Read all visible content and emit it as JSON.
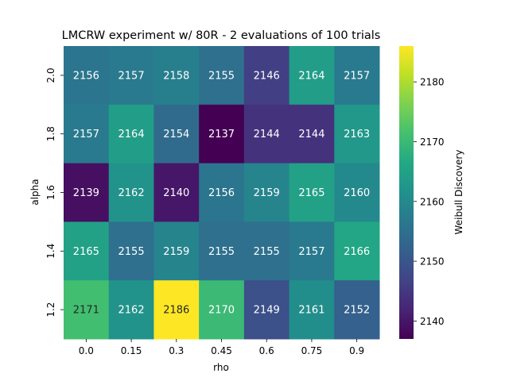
{
  "chart_data": {
    "type": "heatmap",
    "title": "LMCRW experiment w/ 80R - 2 evaluations of 100 trials",
    "xlabel": "rho",
    "ylabel": "alpha",
    "x_categories": [
      "0.0",
      "0.15",
      "0.3",
      "0.45",
      "0.6",
      "0.75",
      "0.9"
    ],
    "y_categories": [
      "2.0",
      "1.8",
      "1.6",
      "1.4",
      "1.2"
    ],
    "values": [
      [
        2156,
        2157,
        2158,
        2155,
        2146,
        2164,
        2157
      ],
      [
        2157,
        2164,
        2154,
        2137,
        2144,
        2144,
        2163
      ],
      [
        2139,
        2162,
        2140,
        2156,
        2159,
        2165,
        2160
      ],
      [
        2165,
        2155,
        2159,
        2155,
        2155,
        2157,
        2166
      ],
      [
        2171,
        2162,
        2186,
        2170,
        2149,
        2161,
        2152
      ]
    ],
    "colorbar": {
      "label": "Weibull Discovery",
      "range": [
        2137,
        2186
      ],
      "ticks": [
        2140,
        2150,
        2160,
        2170,
        2180
      ],
      "colormap": "viridis"
    }
  }
}
